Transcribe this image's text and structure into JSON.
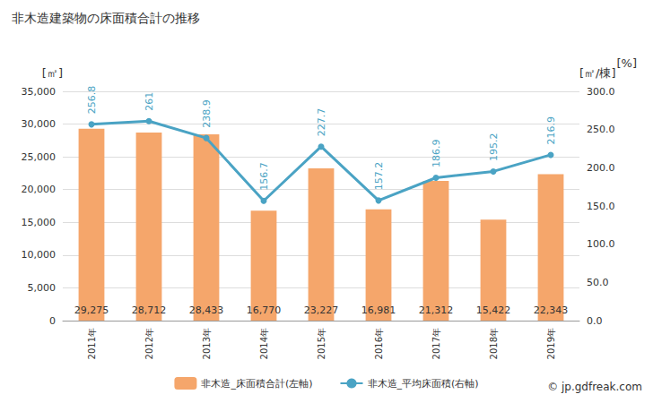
{
  "chart_data": {
    "type": "bar",
    "title": "非木造建築物の床面積合計の推移",
    "y_label": "[㎡]",
    "y2_label": "[㎡/棟]",
    "annotations": [
      "[%]",
      "© jp.gdfreak.com"
    ],
    "categories": [
      "2011年",
      "2012年",
      "2013年",
      "2014年",
      "2015年",
      "2016年",
      "2017年",
      "2018年",
      "2019年"
    ],
    "series": [
      {
        "name": "非木造_床面積合計(左軸)",
        "type": "bar",
        "color": "#f5a66b",
        "values": [
          29275,
          28712,
          28433,
          16770,
          23227,
          16981,
          21312,
          15422,
          22343
        ],
        "value_labels": [
          "29,275",
          "28,712",
          "28,433",
          "16,770",
          "23,227",
          "16,981",
          "21,312",
          "15,422",
          "22,343"
        ]
      },
      {
        "name": "非木造_平均床面積(右軸)",
        "type": "line",
        "axis": "y2",
        "color": "#4aa3c4",
        "marker": "circle",
        "values": [
          256.8,
          261,
          238.9,
          156.7,
          227.7,
          157.2,
          186.9,
          195.2,
          216.9
        ]
      }
    ],
    "ylim": [
      0,
      35000
    ],
    "yticks": [
      0,
      {
        "value": 5000,
        "label": "5,000"
      },
      {
        "value": 10000,
        "label": "10,000"
      },
      {
        "value": 15000,
        "label": "15,000"
      },
      {
        "value": 20000,
        "label": "20,000"
      },
      {
        "value": 25000,
        "label": "25,000"
      },
      {
        "value": 30000,
        "label": "30,000"
      },
      {
        "value": 35000,
        "label": "35,000"
      }
    ],
    "y2lim": [
      0,
      300
    ],
    "y2ticks": [
      {
        "value": 0,
        "label": "0.0"
      },
      {
        "value": 50,
        "label": "50.0"
      },
      {
        "value": 100,
        "label": "100.0"
      },
      {
        "value": 150,
        "label": "150.0"
      },
      {
        "value": 200,
        "label": "200.0"
      },
      {
        "value": 250,
        "label": "250.0"
      },
      {
        "value": 300,
        "label": "300.0"
      }
    ],
    "grid": true,
    "legend": "bottom",
    "data_labels": true
  }
}
